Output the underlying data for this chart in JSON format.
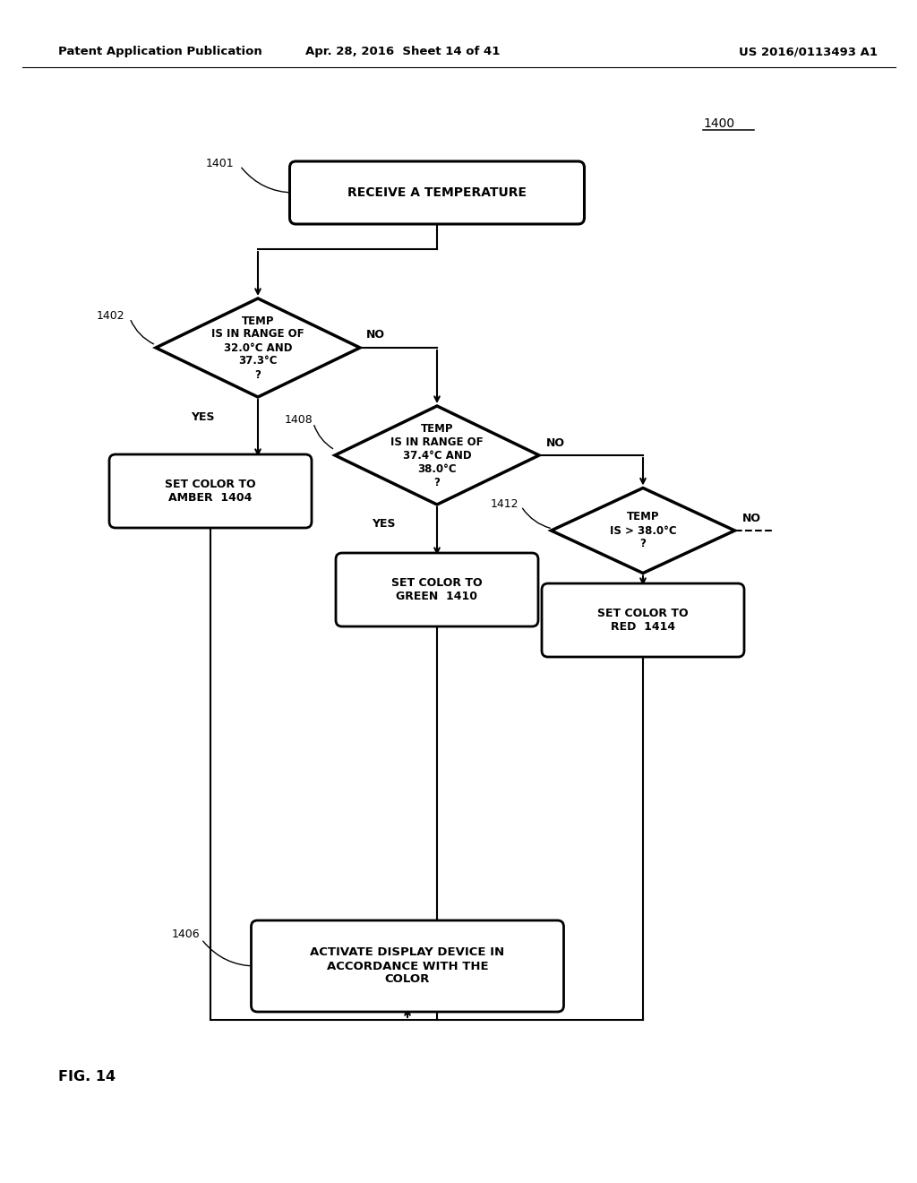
{
  "bg_color": "#ffffff",
  "header_left": "Patent Application Publication",
  "header_mid": "Apr. 28, 2016  Sheet 14 of 41",
  "header_right": "US 2016/0113493 A1",
  "fig_label": "FIG. 14",
  "diagram_ref": "1400"
}
